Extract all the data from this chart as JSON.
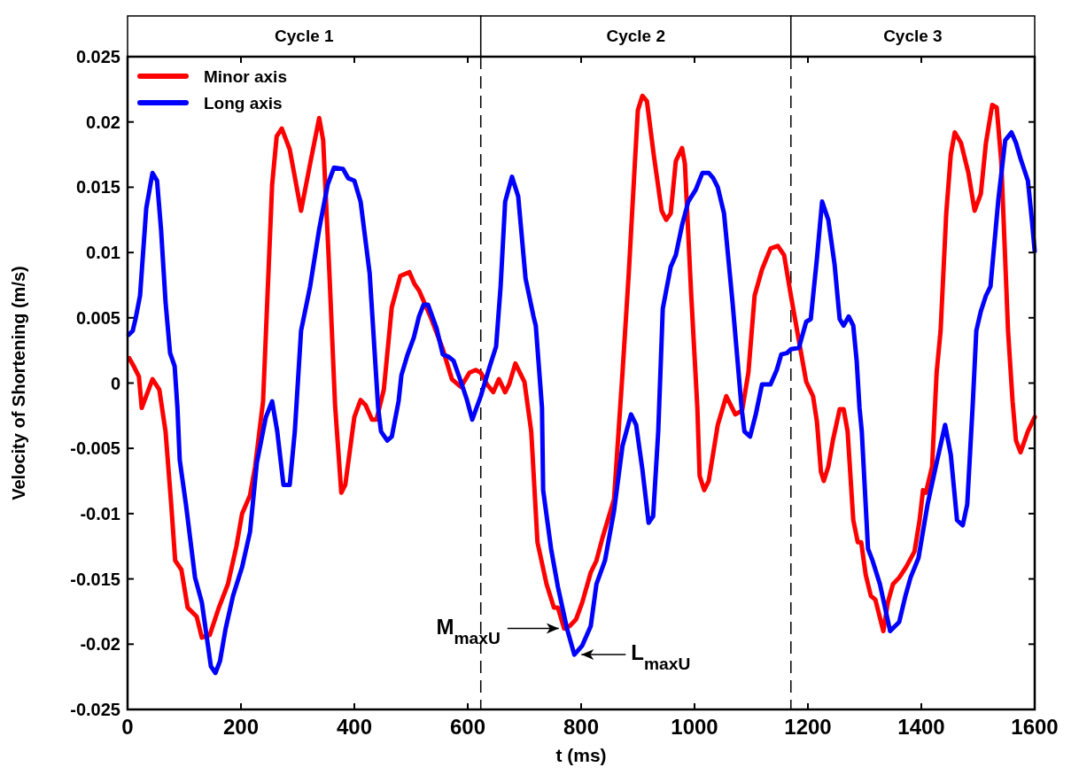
{
  "chart_data": {
    "type": "line",
    "xlabel": "t (ms)",
    "ylabel": "Velocity of Shortening (m/s)",
    "xlim": [
      0,
      1600
    ],
    "xticks": [
      0,
      200,
      400,
      600,
      800,
      1000,
      1200,
      1400,
      1600
    ],
    "ylim": [
      -0.025,
      0.025
    ],
    "yticks": [
      -0.025,
      -0.02,
      -0.015,
      -0.01,
      -0.005,
      0,
      0.005,
      0.01,
      0.015,
      0.02,
      0.025
    ],
    "grid": false,
    "legend": "top left",
    "marker": "none",
    "line_style": "solid",
    "series": [
      {
        "name": "Minor axis",
        "color": "#ff0000",
        "x": [
          3,
          12,
          20,
          25,
          44,
          56,
          67,
          77,
          84,
          95,
          106,
          122,
          131,
          145,
          161,
          177,
          192,
          202,
          216,
          225,
          239,
          255,
          263,
          272,
          286,
          306,
          322,
          338,
          345,
          356,
          366,
          377,
          384,
          400,
          411,
          420,
          431,
          439,
          452,
          466,
          481,
          497,
          506,
          514,
          536,
          556,
          572,
          588,
          603,
          614,
          623,
          634,
          645,
          655,
          666,
          673,
          684,
          700,
          712,
          723,
          739,
          752,
          759,
          770,
          780,
          791,
          802,
          817,
          827,
          838,
          858,
          873,
          884,
          900,
          908,
          916,
          928,
          942,
          950,
          958,
          967,
          978,
          983,
          994,
          1005,
          1009,
          1017,
          1025,
          1041,
          1056,
          1072,
          1084,
          1095,
          1106,
          1119,
          1134,
          1147,
          1158,
          1170,
          1181,
          1197,
          1209,
          1216,
          1223,
          1228,
          1236,
          1244,
          1256,
          1263,
          1270,
          1280,
          1288,
          1294,
          1302,
          1311,
          1319,
          1333,
          1341,
          1350,
          1361,
          1373,
          1388,
          1397,
          1403,
          1408,
          1419,
          1427,
          1434,
          1444,
          1452,
          1459,
          1470,
          1483,
          1494,
          1505,
          1514,
          1525,
          1533,
          1541,
          1553,
          1561,
          1567,
          1575,
          1588,
          1600
        ],
        "values": [
          0.0019,
          0.0012,
          0.0005,
          -0.0019,
          0.0003,
          -0.0005,
          -0.0037,
          -0.0093,
          -0.0136,
          -0.0143,
          -0.0172,
          -0.0179,
          -0.0195,
          -0.0193,
          -0.0172,
          -0.0154,
          -0.0125,
          -0.01,
          -0.0086,
          -0.0064,
          -0.0014,
          0.0152,
          0.0189,
          0.0195,
          0.0179,
          0.0132,
          0.0168,
          0.0203,
          0.0186,
          0.0084,
          -0.0017,
          -0.0084,
          -0.0078,
          -0.0026,
          -0.0013,
          -0.0017,
          -0.0028,
          -0.0028,
          -0.0005,
          0.0058,
          0.0082,
          0.0085,
          0.0076,
          0.0071,
          0.0049,
          0.0026,
          0.0003,
          -0.0003,
          0.0008,
          0.001,
          0.0008,
          -0.0001,
          -0.0007,
          0.0003,
          -0.0007,
          -0.0001,
          0.0015,
          0.0001,
          -0.0037,
          -0.0122,
          -0.0154,
          -0.0172,
          -0.0172,
          -0.0188,
          -0.0186,
          -0.0181,
          -0.0168,
          -0.0145,
          -0.0136,
          -0.0118,
          -0.0089,
          0.0008,
          0.0084,
          0.0209,
          0.022,
          0.0216,
          0.0175,
          0.0132,
          0.0125,
          0.013,
          0.017,
          0.018,
          0.0168,
          0.0069,
          -0.0019,
          -0.0071,
          -0.0082,
          -0.0075,
          -0.0032,
          -0.001,
          -0.0024,
          -0.0021,
          0.0008,
          0.0067,
          0.0087,
          0.0103,
          0.0105,
          0.0098,
          0.0067,
          0.004,
          0.0001,
          -0.001,
          -0.003,
          -0.0068,
          -0.0075,
          -0.0064,
          -0.0044,
          -0.002,
          -0.002,
          -0.0037,
          -0.0105,
          -0.0122,
          -0.0122,
          -0.0147,
          -0.0163,
          -0.0166,
          -0.019,
          -0.0168,
          -0.0154,
          -0.0149,
          -0.0141,
          -0.0129,
          -0.0105,
          -0.0082,
          -0.0084,
          -0.0064,
          0.0008,
          0.004,
          0.013,
          0.0175,
          0.0192,
          0.0184,
          0.0161,
          0.0132,
          0.0145,
          0.0184,
          0.0213,
          0.0211,
          0.017,
          0.004,
          -0.0014,
          -0.0044,
          -0.0053,
          -0.0037,
          -0.0026
        ]
      },
      {
        "name": "Long axis",
        "color": "#0000ff",
        "x": [
          2,
          9,
          14,
          22,
          33,
          44,
          52,
          59,
          67,
          75,
          83,
          88,
          92,
          103,
          119,
          131,
          147,
          155,
          163,
          173,
          186,
          202,
          216,
          228,
          244,
          255,
          264,
          275,
          286,
          295,
          306,
          322,
          338,
          353,
          364,
          380,
          389,
          400,
          411,
          427,
          442,
          447,
          458,
          466,
          478,
          483,
          494,
          505,
          514,
          522,
          530,
          545,
          556,
          567,
          575,
          588,
          598,
          608,
          623,
          639,
          650,
          658,
          666,
          678,
          689,
          702,
          716,
          720,
          731,
          733,
          747,
          759,
          775,
          788,
          802,
          817,
          827,
          842,
          858,
          873,
          888,
          897,
          908,
          919,
          927,
          936,
          944,
          958,
          967,
          978,
          989,
          1002,
          1014,
          1025,
          1033,
          1041,
          1052,
          1067,
          1083,
          1088,
          1098,
          1108,
          1119,
          1134,
          1145,
          1153,
          1163,
          1170,
          1184,
          1197,
          1205,
          1216,
          1225,
          1236,
          1247,
          1256,
          1263,
          1272,
          1280,
          1286,
          1291,
          1295,
          1306,
          1314,
          1327,
          1345,
          1361,
          1372,
          1381,
          1395,
          1411,
          1427,
          1442,
          1452,
          1463,
          1473,
          1481,
          1491,
          1497,
          1505,
          1514,
          1522,
          1536,
          1548,
          1559,
          1567,
          1575,
          1588,
          1595,
          1600
        ],
        "values": [
          0.0037,
          0.004,
          0.0049,
          0.0067,
          0.0134,
          0.0161,
          0.0155,
          0.0118,
          0.0062,
          0.0023,
          0.0013,
          -0.0019,
          -0.0059,
          -0.0093,
          -0.0149,
          -0.0168,
          -0.0217,
          -0.0222,
          -0.0213,
          -0.0188,
          -0.0163,
          -0.0141,
          -0.0114,
          -0.0061,
          -0.0026,
          -0.0014,
          -0.0037,
          -0.0078,
          -0.0078,
          -0.0037,
          0.004,
          0.0074,
          0.0118,
          0.0152,
          0.0165,
          0.0164,
          0.0157,
          0.0155,
          0.0139,
          0.0084,
          -0.0019,
          -0.0037,
          -0.0044,
          -0.0041,
          -0.0014,
          0.0006,
          0.0022,
          0.0035,
          0.0051,
          0.006,
          0.006,
          0.0042,
          0.0022,
          0.002,
          0.0017,
          0.0001,
          -0.0012,
          -0.0028,
          -0.001,
          0.0013,
          0.0028,
          0.0074,
          0.0139,
          0.0158,
          0.0143,
          0.008,
          0.0051,
          0.0044,
          -0.0019,
          -0.0082,
          -0.0127,
          -0.0156,
          -0.0188,
          -0.0208,
          -0.0201,
          -0.0186,
          -0.0154,
          -0.0136,
          -0.0098,
          -0.0048,
          -0.0024,
          -0.0032,
          -0.0066,
          -0.0107,
          -0.0102,
          -0.0037,
          0.0057,
          0.0089,
          0.0098,
          0.0121,
          0.0139,
          0.0148,
          0.0161,
          0.0161,
          0.0157,
          0.015,
          0.013,
          0.0062,
          -0.0019,
          -0.0037,
          -0.0041,
          -0.0024,
          -0.0001,
          -0.0001,
          0.001,
          0.0022,
          0.0023,
          0.0026,
          0.0027,
          0.0047,
          0.0049,
          0.0096,
          0.0139,
          0.0125,
          0.0091,
          0.0049,
          0.0044,
          0.0051,
          0.0044,
          0.0017,
          -0.0019,
          -0.0037,
          -0.0127,
          -0.0136,
          -0.0154,
          -0.019,
          -0.0183,
          -0.0163,
          -0.0149,
          -0.0134,
          -0.0093,
          -0.0061,
          -0.0032,
          -0.0055,
          -0.0105,
          -0.0109,
          -0.0093,
          -0.0014,
          0.004,
          0.0055,
          0.0067,
          0.0074,
          0.0141,
          0.0186,
          0.0192,
          0.0184,
          0.0172,
          0.0155,
          0.0125,
          0.0101
        ]
      }
    ],
    "ref_lines": [
      {
        "axis": "x",
        "value": 623,
        "line_style": "dashed",
        "color": "#000000"
      },
      {
        "axis": "x",
        "value": 1170,
        "line_style": "dashed",
        "color": "#000000"
      }
    ],
    "annotations": [
      "Cycle 1",
      "Cycle 2",
      "Cycle 3",
      {
        "text": "M$_{maxU}$",
        "x": 770,
        "y": -0.0188
      },
      {
        "text": "L$_{maxU}$",
        "x": 788,
        "y": -0.0208
      }
    ]
  }
}
